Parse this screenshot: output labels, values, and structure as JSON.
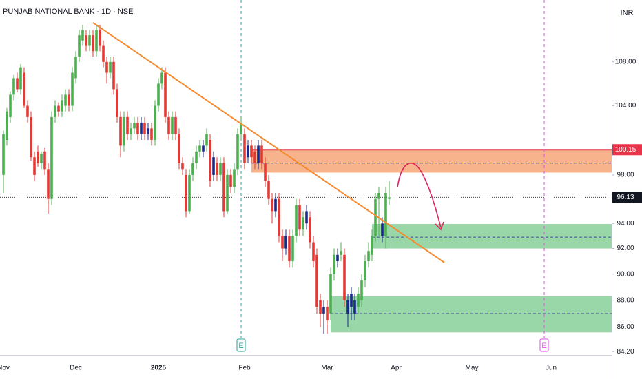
{
  "chart_data": {
    "type": "candlestick",
    "title": "PUNJAB NATIONAL BANK · 1D · NSE",
    "currency": "INR",
    "log_scale": true,
    "ylim": [
      83.96,
      113.9
    ],
    "yticks": [
      {
        "value": 84.2,
        "label": "84.20"
      },
      {
        "value": 86,
        "label": "86.00"
      },
      {
        "value": 88,
        "label": "88.00"
      },
      {
        "value": 90,
        "label": "90.00"
      },
      {
        "value": 92,
        "label": "92.00"
      },
      {
        "value": 94,
        "label": "94.00"
      },
      {
        "value": 98,
        "label": "98.00"
      },
      {
        "value": 104,
        "label": "104.00"
      },
      {
        "value": 108,
        "label": "108.00"
      }
    ],
    "categories": [
      "Nov",
      null,
      null,
      null,
      null,
      null,
      null,
      null,
      null,
      null,
      null,
      null,
      null,
      null,
      null,
      null,
      null,
      null,
      null,
      null,
      null,
      "Dec",
      null,
      null,
      null,
      null,
      null,
      null,
      null,
      null,
      null,
      null,
      null,
      null,
      null,
      null,
      null,
      null,
      null,
      null,
      null,
      null,
      null,
      null,
      null,
      "2025",
      null,
      null,
      null,
      null,
      null,
      null,
      null,
      null,
      null,
      null,
      null,
      null,
      null,
      null,
      null,
      null,
      null,
      null,
      null,
      null,
      null,
      null,
      null,
      null,
      "Feb",
      null,
      null,
      null,
      null,
      null,
      null,
      null,
      null,
      null,
      null,
      null,
      null,
      null,
      null,
      null,
      null,
      null,
      null,
      null,
      null,
      null,
      null,
      null,
      "Mar",
      null,
      null,
      null,
      null,
      null,
      null,
      null,
      null,
      null,
      null,
      null,
      null,
      null,
      null,
      null,
      null,
      null,
      null,
      null,
      "Apr",
      null,
      null,
      null,
      null,
      null,
      null,
      null,
      null,
      null,
      null,
      null,
      null,
      null,
      null,
      null,
      null,
      null,
      null,
      null,
      null,
      null,
      "May",
      null,
      null,
      null,
      null,
      null,
      null,
      null,
      null,
      null,
      null,
      null,
      null,
      null,
      null,
      null,
      null,
      null,
      null,
      null,
      null,
      null,
      null,
      "Jun",
      null,
      null,
      null,
      null,
      null,
      null,
      null,
      null,
      null,
      null,
      null,
      null,
      null,
      null,
      null,
      null,
      null
    ],
    "series": [
      {
        "values": [
          [
            98,
            101.8,
            96.5,
            101.5
          ],
          [
            101,
            103.8,
            100.5,
            103.5
          ],
          [
            103,
            105.3,
            102.5,
            105
          ],
          [
            105,
            106.8,
            104.5,
            106.5
          ],
          [
            106.5,
            107,
            105.2,
            105.5
          ],
          [
            105.5,
            107.8,
            105,
            107.5
          ],
          [
            107,
            107.5,
            103.8,
            104
          ],
          [
            104,
            104.5,
            102.5,
            103
          ],
          [
            103,
            103.5,
            99.2,
            99.5
          ],
          [
            99.5,
            100,
            97.5,
            98
          ],
          [
            100,
            100.5,
            98.7,
            99
          ],
          [
            99,
            100,
            98.5,
            99.8
          ],
          [
            100,
            100.3,
            98,
            98.5
          ],
          [
            98.5,
            99,
            94.8,
            96
          ],
          [
            96,
            103.5,
            95.5,
            103
          ],
          [
            103,
            104.5,
            102.5,
            104
          ],
          [
            104,
            104.3,
            103,
            103.5
          ],
          [
            103.5,
            105,
            103,
            104.5
          ],
          [
            104,
            105.5,
            103.5,
            105
          ],
          [
            105,
            105.5,
            103.5,
            104
          ],
          [
            104,
            107.5,
            103.5,
            107
          ],
          [
            106.5,
            109,
            106,
            108.5
          ],
          [
            108.5,
            111,
            108,
            110.5
          ],
          [
            110,
            111.5,
            109.5,
            111
          ],
          [
            110.5,
            111,
            109,
            109.5
          ],
          [
            109.5,
            111,
            109,
            110.5
          ],
          [
            110.5,
            111,
            108.5,
            109
          ],
          [
            109,
            111.5,
            108.5,
            111
          ],
          [
            111,
            111.5,
            109,
            109.5
          ],
          [
            109.5,
            110,
            107.5,
            108
          ],
          [
            108,
            108.5,
            106,
            107
          ],
          [
            107,
            108.5,
            106.5,
            108
          ],
          [
            108,
            108.5,
            105,
            105.5
          ],
          [
            105.5,
            106,
            102.5,
            103
          ],
          [
            103,
            103.5,
            99.5,
            100.5
          ],
          [
            100.5,
            103.5,
            100,
            103
          ],
          [
            103,
            103.5,
            101,
            101.5
          ],
          [
            101.5,
            102.5,
            101,
            102
          ],
          [
            102,
            103,
            101.5,
            102.5
          ],
          [
            102.5,
            103,
            101,
            101.5
          ],
          [
            101.5,
            103,
            101,
            102.5
          ],
          [
            102.5,
            103,
            101,
            101.5
          ],
          [
            101.5,
            102.5,
            101,
            102
          ],
          [
            102,
            102.5,
            100.5,
            101
          ],
          [
            101,
            104.5,
            100.5,
            104
          ],
          [
            104,
            106.5,
            103.5,
            106
          ],
          [
            106,
            107.5,
            105.5,
            107
          ],
          [
            107,
            107.5,
            102.5,
            103
          ],
          [
            103,
            103.5,
            101,
            101.5
          ],
          [
            101.5,
            103.5,
            101,
            103
          ],
          [
            103,
            103.5,
            101,
            101.5
          ],
          [
            101.5,
            102,
            98.5,
            99
          ],
          [
            99,
            99.5,
            98,
            98.5
          ],
          [
            98,
            98.5,
            94.5,
            95
          ],
          [
            95,
            98.5,
            94.8,
            98
          ],
          [
            98,
            99.5,
            97.5,
            99
          ],
          [
            99,
            100.5,
            98.5,
            100
          ],
          [
            100,
            101,
            99.5,
            100.5
          ],
          [
            100,
            101,
            99.5,
            100.5
          ],
          [
            100.5,
            102,
            100,
            101.5
          ],
          [
            101,
            101.5,
            97,
            97.5
          ],
          [
            98,
            100,
            97.5,
            99.5
          ],
          [
            99,
            99.5,
            97.5,
            98
          ],
          [
            98,
            99.5,
            97.5,
            99
          ],
          [
            99,
            99.5,
            94.5,
            95
          ],
          [
            95,
            98.5,
            94.8,
            98
          ],
          [
            98,
            98.5,
            96.5,
            97
          ],
          [
            97,
            99,
            96.5,
            98.5
          ],
          [
            98.5,
            102,
            98,
            101.5
          ],
          [
            101.5,
            103,
            101,
            102.5
          ],
          [
            101.5,
            102,
            98.5,
            99
          ],
          [
            99.5,
            101,
            99,
            100.5
          ],
          [
            100.5,
            101,
            99,
            99.5
          ],
          [
            100,
            100.5,
            98.5,
            99
          ],
          [
            99,
            101,
            98.5,
            100.5
          ],
          [
            100.5,
            101,
            98.5,
            99
          ],
          [
            99,
            99.5,
            97,
            97.5
          ],
          [
            97.5,
            98,
            95.5,
            96
          ],
          [
            96,
            96.5,
            94,
            95
          ],
          [
            95,
            96.5,
            94.5,
            96
          ],
          [
            96,
            96.5,
            92.5,
            93
          ],
          [
            93,
            93.5,
            91,
            92
          ],
          [
            92,
            93.5,
            91.5,
            93
          ],
          [
            93,
            93.5,
            90.5,
            91
          ],
          [
            91,
            93.5,
            90.5,
            93
          ],
          [
            93,
            96,
            92.5,
            95.5
          ],
          [
            95.5,
            96,
            93,
            93.5
          ],
          [
            93.5,
            95,
            93,
            94.5
          ],
          [
            94,
            95.5,
            93.5,
            95
          ],
          [
            94.5,
            95,
            92,
            92.5
          ],
          [
            92.5,
            93,
            90.5,
            91
          ],
          [
            91.5,
            92,
            87,
            87.5
          ],
          [
            88,
            88.5,
            86,
            87
          ],
          [
            87,
            88,
            85.5,
            87.5
          ],
          [
            87.5,
            88,
            85.5,
            86.5
          ],
          [
            87,
            90.5,
            86.5,
            90
          ],
          [
            90,
            92,
            89.5,
            91.5
          ],
          [
            91,
            92,
            90.5,
            91.5
          ],
          [
            91.5,
            92.5,
            91,
            91.8
          ],
          [
            91.5,
            92,
            87.5,
            88
          ],
          [
            87,
            88.5,
            86,
            88
          ],
          [
            87.5,
            89,
            86.5,
            88.5
          ],
          [
            87,
            88.5,
            86.5,
            88
          ],
          [
            87.5,
            89,
            87,
            88.5
          ],
          [
            88,
            90,
            87.5,
            89.5
          ],
          [
            89.5,
            91.5,
            89,
            91
          ],
          [
            91,
            92.5,
            90.5,
            91.8
          ],
          [
            91.5,
            93.5,
            91,
            93
          ],
          [
            93,
            96.5,
            92.5,
            96
          ],
          [
            96,
            97,
            93,
            96.5
          ],
          [
            94,
            94.5,
            92.5,
            93
          ],
          [
            93,
            97,
            92,
            96.5
          ],
          [
            96,
            97.5,
            95.5,
            96.13
          ],
          null,
          null,
          null,
          null,
          null,
          null,
          null,
          null,
          null,
          null,
          null,
          null,
          null,
          null,
          null,
          null,
          null,
          null,
          null,
          null,
          null,
          null,
          null,
          null,
          null,
          null,
          null,
          null,
          null,
          null,
          null,
          null,
          null,
          null,
          null,
          null,
          null,
          null,
          null,
          null,
          null,
          null,
          null,
          null,
          null,
          null,
          null,
          null,
          null,
          null,
          null,
          null,
          null,
          null,
          null,
          null,
          null,
          null,
          null,
          null,
          null,
          null,
          null,
          null
        ],
        "colors": [
          "#4caf50",
          "#4caf50",
          "#4caf50",
          "#4caf50",
          "#e53935",
          "#4caf50",
          "#e53935",
          "#e53935",
          "#e53935",
          "#e53935",
          "#e53935",
          "#4caf50",
          "#e53935",
          "#e53935",
          "#4caf50",
          "#4caf50",
          "#e53935",
          "#4caf50",
          "#4caf50",
          "#e53935",
          "#4caf50",
          "#4caf50",
          "#4caf50",
          "#4caf50",
          "#e53935",
          "#4caf50",
          "#e53935",
          "#4caf50",
          "#e53935",
          "#e53935",
          "#e53935",
          "#4caf50",
          "#e53935",
          "#e53935",
          "#e53935",
          "#4caf50",
          "#e53935",
          "#4caf50",
          "#4caf50",
          "#e53935",
          "#1a2a8a",
          "#e53935",
          "#1a2a8a",
          "#e53935",
          "#4caf50",
          "#4caf50",
          "#4caf50",
          "#e53935",
          "#e53935",
          "#4caf50",
          "#e53935",
          "#e53935",
          "#e53935",
          "#e53935",
          "#4caf50",
          "#4caf50",
          "#4caf50",
          "#4caf50",
          "#1a2a8a",
          "#4caf50",
          "#e53935",
          "#1a2a8a",
          "#e53935",
          "#4caf50",
          "#e53935",
          "#4caf50",
          "#e53935",
          "#4caf50",
          "#4caf50",
          "#4caf50",
          "#e53935",
          "#1a2a8a",
          "#e53935",
          "#e53935",
          "#1a2a8a",
          "#e53935",
          "#e53935",
          "#e53935",
          "#e53935",
          "#1a2a8a",
          "#e53935",
          "#e53935",
          "#1a2a8a",
          "#e53935",
          "#4caf50",
          "#4caf50",
          "#e53935",
          "#4caf50",
          "#1a2a8a",
          "#e53935",
          "#e53935",
          "#e53935",
          "#e53935",
          "#1a2a8a",
          "#e53935",
          "#4caf50",
          "#4caf50",
          "#1a2a8a",
          "#4caf50",
          "#e53935",
          "#1a2a8a",
          "#1a2a8a",
          "#1a2a8a",
          "#4caf50",
          "#4caf50",
          "#4caf50",
          "#4caf50",
          "#4caf50",
          "#4caf50",
          "#4caf50",
          "#1a2a8a",
          "#4caf50",
          "#4caf50",
          null,
          null,
          null,
          null,
          null,
          null,
          null,
          null,
          null,
          null,
          null,
          null,
          null,
          null,
          null,
          null,
          null,
          null,
          null,
          null,
          null,
          null,
          null,
          null,
          null,
          null,
          null,
          null,
          null,
          null,
          null,
          null,
          null,
          null,
          null,
          null,
          null,
          null,
          null,
          null,
          null,
          null,
          null,
          null,
          null,
          null,
          null,
          null,
          null,
          null,
          null,
          null,
          null,
          null,
          null,
          null,
          null,
          null,
          null,
          null,
          null,
          null,
          null,
          null
        ]
      }
    ],
    "trendline": {
      "x": [
        26,
        128
      ],
      "y": [
        111.7,
        90.9
      ],
      "color": "#f58a2f"
    },
    "zones": [
      {
        "top": 100.15,
        "bottom": 98.2,
        "mid": 99.0,
        "start": 72,
        "color": "#f7b086"
      },
      {
        "top": 93.96,
        "bottom": 92.0,
        "mid": 92.9,
        "start": 107,
        "color": "#95d5a3"
      },
      {
        "top": 88.3,
        "bottom": 85.6,
        "mid": 87.0,
        "start": 95,
        "color": "#95d5a3"
      }
    ],
    "resistance": {
      "value": 100.15,
      "color": "#e8334a"
    },
    "last_price": 96.13,
    "events": [
      {
        "x": 69,
        "label": "E",
        "color": "#26a69a"
      },
      {
        "x": 157,
        "label": "E",
        "color": "#d84ee8"
      }
    ]
  }
}
